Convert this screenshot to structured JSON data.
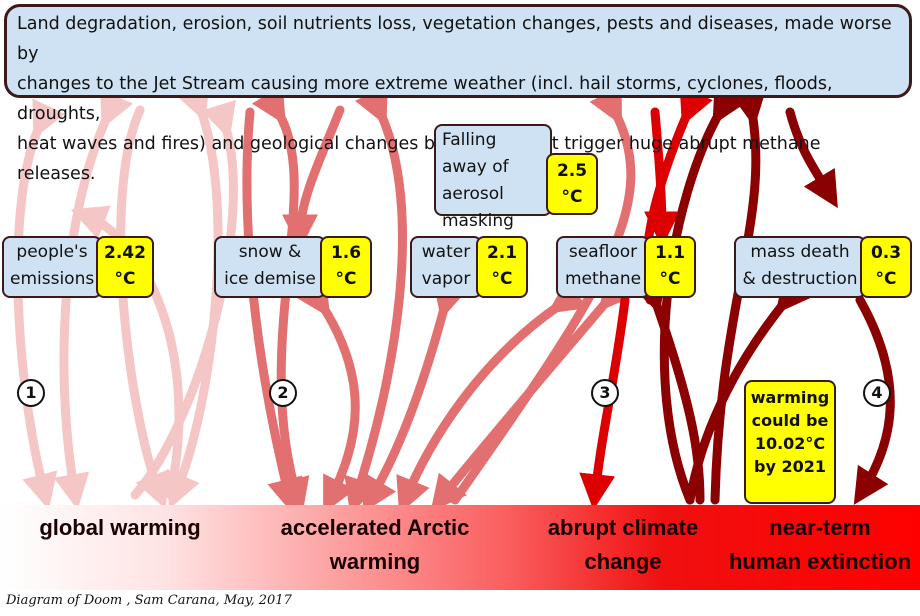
{
  "top_box": {
    "line1": "Land degradation, erosion, soil nutrients loss, vegetation changes, pests and diseases, made worse by",
    "line2": "changes to the Jet Stream causing more extreme weather (incl. hail storms, cyclones, floods, droughts,",
    "line3": "heat waves and fires) and geological changes by melting that trigger huge abrupt methane releases."
  },
  "factors": {
    "emissions": {
      "label1": "people's",
      "label2": "emissions",
      "value1": "2.42",
      "value2": "°C"
    },
    "snow": {
      "label1": "snow &",
      "label2": "ice demise",
      "value1": "1.6",
      "value2": "°C"
    },
    "water": {
      "label1": "water",
      "label2": "vapor",
      "value1": "2.1",
      "value2": "°C"
    },
    "seafloor": {
      "label1": "seafloor",
      "label2": "methane",
      "value1": "1.1",
      "value2": "°C"
    },
    "death": {
      "label1": "mass death",
      "label2": "& destruction",
      "value1": "0.3",
      "value2": "°C"
    },
    "aerosol": {
      "label1": "Falling away of",
      "label2": "aerosol",
      "label3": "masking",
      "value1": "2.5",
      "value2": "°C"
    }
  },
  "stages": {
    "n1": "1",
    "n2": "2",
    "n3": "3",
    "n4": "4",
    "global": "global warming",
    "arctic1": "accelerated Arctic",
    "arctic2": "warming",
    "abrupt1": "abrupt climate",
    "abrupt2": "change",
    "extinct1": "near-term",
    "extinct2": "human extinction"
  },
  "warning": {
    "l1": "warming",
    "l2": "could be",
    "l3": "10.02°C",
    "l4": "by 2021"
  },
  "credit": "Diagram of Doom , Sam Carana, May, 2017",
  "colors": {
    "box_fill": "#cfe2f3",
    "value_fill": "#ffff00",
    "outline": "#3d1a1a",
    "arrow_light": "#f4c6c6",
    "arrow_mid": "#e27070",
    "arrow_red": "#dd0000",
    "arrow_dark": "#8b0000"
  }
}
